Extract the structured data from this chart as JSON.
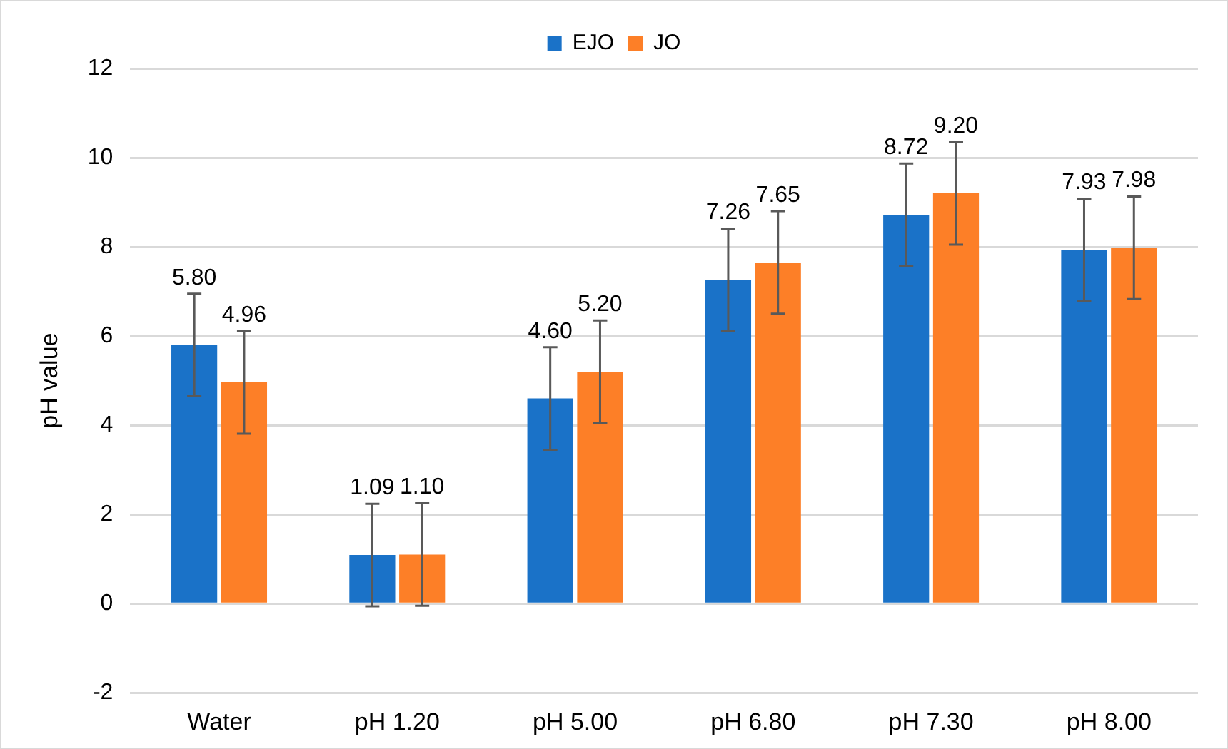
{
  "chart_data": {
    "type": "bar",
    "ylabel": "pH value",
    "categories": [
      "Water",
      "pH 1.20",
      "pH 5.00",
      "pH 6.80",
      "pH 7.30",
      "pH 8.00"
    ],
    "series": [
      {
        "name": "EJO",
        "color": "#1a72c8",
        "values": [
          5.8,
          1.09,
          4.6,
          7.26,
          8.72,
          7.93
        ],
        "value_labels": [
          "5.80",
          "1.09",
          "4.60",
          "7.26",
          "8.72",
          "7.93"
        ],
        "errors": [
          1.15,
          1.15,
          1.15,
          1.15,
          1.15,
          1.15
        ]
      },
      {
        "name": "JO",
        "color": "#fd7f27",
        "values": [
          4.96,
          1.1,
          5.2,
          7.65,
          9.2,
          7.98
        ],
        "value_labels": [
          "4.96",
          "1.10",
          "5.20",
          "7.65",
          "9.20",
          "7.98"
        ],
        "errors": [
          1.15,
          1.15,
          1.15,
          1.15,
          1.15,
          1.15
        ]
      }
    ],
    "ylim": [
      -2,
      12
    ],
    "yticks": [
      -2,
      0,
      2,
      4,
      6,
      8,
      10,
      12
    ],
    "grid": "y",
    "legend": "top"
  }
}
